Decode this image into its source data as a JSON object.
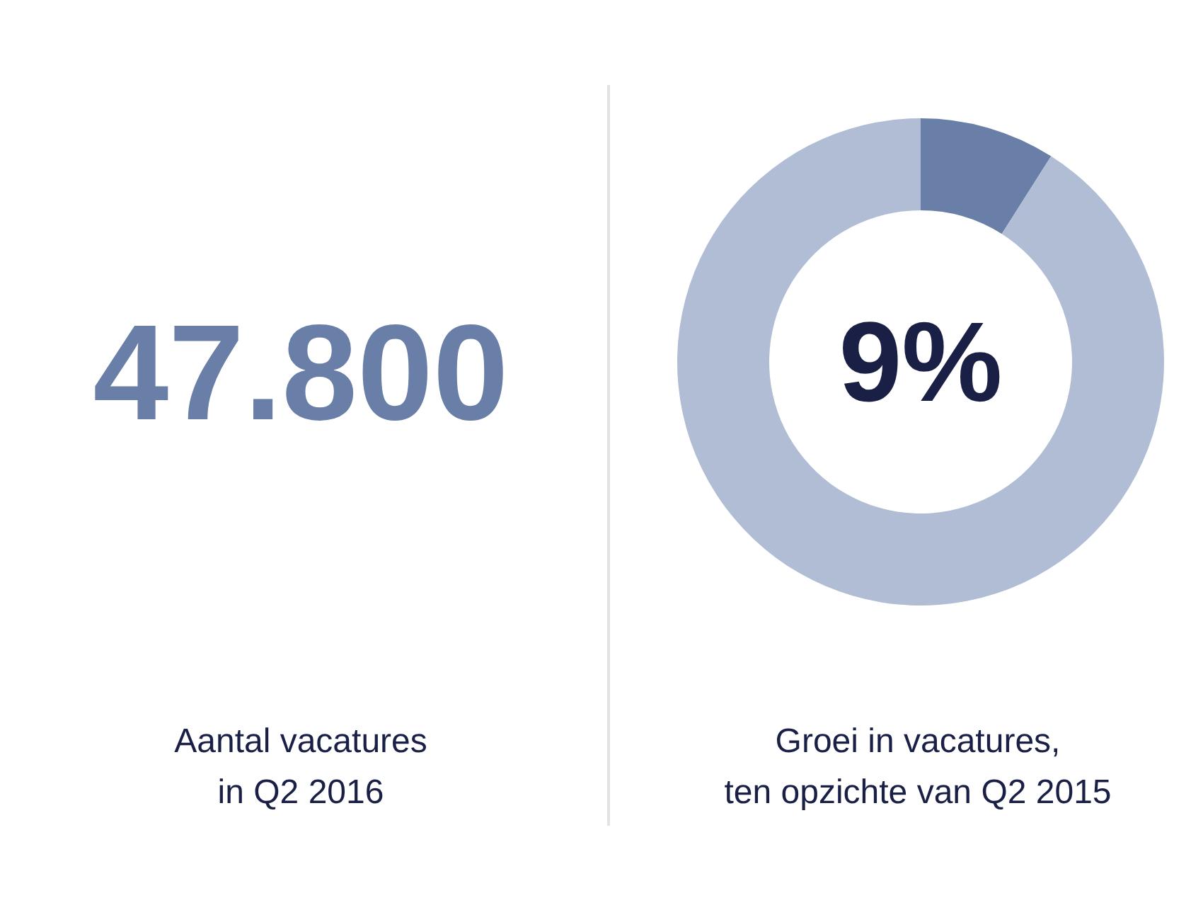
{
  "chart_data": [
    {
      "type": "other",
      "annotations": [
        "47.800",
        "Aantal vacatures\nin Q2 2016"
      ]
    },
    {
      "type": "donut",
      "categories": [
        null,
        null
      ],
      "values": [
        9,
        91
      ],
      "colors": [
        "#6a7fa8",
        "#b0bdd4"
      ],
      "value_labels": [
        "9%",
        null
      ],
      "annotations": [
        "Groei in vacatures,\nten opzichte van Q2 2015"
      ]
    }
  ]
}
